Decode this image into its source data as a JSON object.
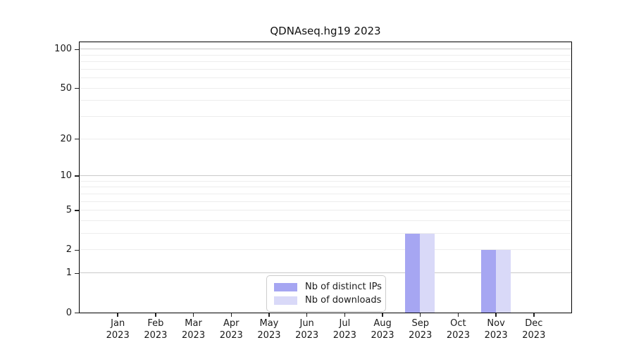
{
  "title": "QDNAseq.hg19 2023",
  "chart_data": {
    "type": "bar",
    "title": "QDNAseq.hg19 2023",
    "categories": [
      "Jan",
      "Feb",
      "Mar",
      "Apr",
      "May",
      "Jun",
      "Jul",
      "Aug",
      "Sep",
      "Oct",
      "Nov",
      "Dec"
    ],
    "x_year_label": "2023",
    "series": [
      {
        "name": "Nb of distinct IPs",
        "color": "#a6a6f2",
        "values": [
          0,
          0,
          0,
          0,
          0,
          0,
          0,
          0,
          3,
          0,
          2,
          0
        ]
      },
      {
        "name": "Nb of downloads",
        "color": "#d9d9f8",
        "values": [
          0,
          0,
          0,
          0,
          0,
          0,
          0,
          0,
          3,
          0,
          2,
          0
        ]
      }
    ],
    "y_scale": "log1p",
    "ylim": [
      0,
      113
    ],
    "y_ticks": [
      0,
      1,
      2,
      5,
      10,
      20,
      50,
      100
    ],
    "grid": {
      "on": true,
      "major_at": [
        1,
        10,
        100
      ],
      "minor_at": [
        2,
        3,
        4,
        5,
        6,
        7,
        8,
        9,
        20,
        30,
        40,
        50,
        60,
        70,
        80,
        90
      ]
    },
    "legend_position": "inside-bottom-center",
    "colors": {
      "axis": "#000000",
      "grid_major": "#c9c9c9",
      "grid_minor": "#ededed",
      "background": "#ffffff"
    }
  }
}
